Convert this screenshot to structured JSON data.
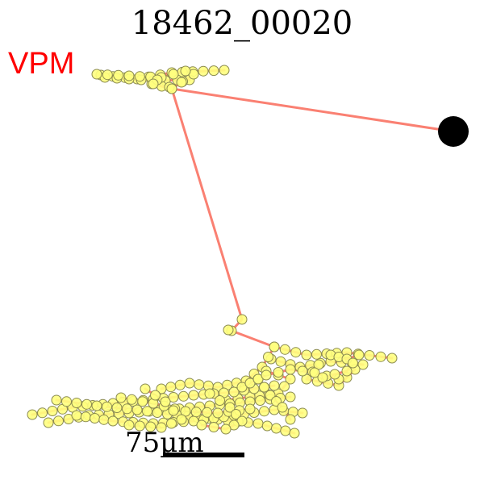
{
  "figure": {
    "title": "18462_00020",
    "region_label": "VPM",
    "scale_bar_label": "75µm",
    "colors": {
      "region_label": "#ff0000",
      "neurite": "#fa8072",
      "node_fill": "#ffff80",
      "node_stroke": "#8a8a50",
      "soma": "#000000",
      "scale_bar": "#000000"
    },
    "icons": {
      "soma": "soma-dot-icon",
      "node": "circle-icon"
    }
  }
}
